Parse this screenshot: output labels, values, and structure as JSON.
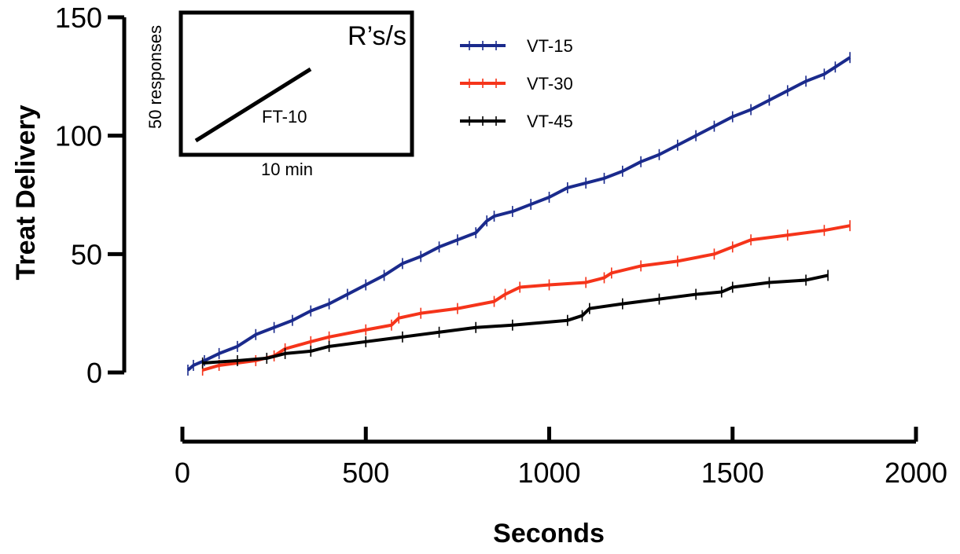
{
  "chart_data": {
    "type": "line",
    "xlabel": "Seconds",
    "ylabel": "Treat Delivery",
    "xlim": [
      0,
      2000
    ],
    "ylim": [
      0,
      150
    ],
    "x_ticks": [
      "0",
      "500",
      "1000",
      "1500",
      "2000"
    ],
    "y_ticks": [
      "0",
      "50",
      "100",
      "150"
    ],
    "grid": false,
    "legend_position": "top-right",
    "series": [
      {
        "name": "VT-15",
        "color": "#1a2a8c",
        "points": [
          [
            15,
            1
          ],
          [
            30,
            3
          ],
          [
            60,
            5
          ],
          [
            100,
            8
          ],
          [
            150,
            11
          ],
          [
            200,
            16
          ],
          [
            250,
            19
          ],
          [
            300,
            22
          ],
          [
            350,
            26
          ],
          [
            400,
            29
          ],
          [
            450,
            33
          ],
          [
            500,
            37
          ],
          [
            550,
            41
          ],
          [
            600,
            46
          ],
          [
            650,
            49
          ],
          [
            700,
            53
          ],
          [
            750,
            56
          ],
          [
            800,
            59
          ],
          [
            830,
            64
          ],
          [
            850,
            66
          ],
          [
            900,
            68
          ],
          [
            950,
            71
          ],
          [
            1000,
            74
          ],
          [
            1050,
            78
          ],
          [
            1100,
            80
          ],
          [
            1150,
            82
          ],
          [
            1200,
            85
          ],
          [
            1250,
            89
          ],
          [
            1300,
            92
          ],
          [
            1350,
            96
          ],
          [
            1400,
            100
          ],
          [
            1450,
            104
          ],
          [
            1500,
            108
          ],
          [
            1550,
            111
          ],
          [
            1600,
            115
          ],
          [
            1650,
            119
          ],
          [
            1700,
            123
          ],
          [
            1750,
            126
          ],
          [
            1780,
            129
          ],
          [
            1820,
            133
          ]
        ]
      },
      {
        "name": "VT-30",
        "color": "#f5341a",
        "points": [
          [
            55,
            1
          ],
          [
            100,
            3
          ],
          [
            200,
            5
          ],
          [
            250,
            7
          ],
          [
            280,
            10
          ],
          [
            350,
            13
          ],
          [
            400,
            15
          ],
          [
            500,
            18
          ],
          [
            570,
            20
          ],
          [
            590,
            23
          ],
          [
            650,
            25
          ],
          [
            750,
            27
          ],
          [
            850,
            30
          ],
          [
            880,
            33
          ],
          [
            920,
            36
          ],
          [
            1000,
            37
          ],
          [
            1100,
            38
          ],
          [
            1150,
            40
          ],
          [
            1170,
            42
          ],
          [
            1250,
            45
          ],
          [
            1350,
            47
          ],
          [
            1450,
            50
          ],
          [
            1500,
            53
          ],
          [
            1550,
            56
          ],
          [
            1650,
            58
          ],
          [
            1750,
            60
          ],
          [
            1820,
            62
          ]
        ]
      },
      {
        "name": "VT-45",
        "color": "#000000",
        "points": [
          [
            55,
            4
          ],
          [
            150,
            5
          ],
          [
            230,
            6
          ],
          [
            280,
            8
          ],
          [
            350,
            9
          ],
          [
            400,
            11
          ],
          [
            500,
            13
          ],
          [
            600,
            15
          ],
          [
            700,
            17
          ],
          [
            800,
            19
          ],
          [
            900,
            20
          ],
          [
            1050,
            22
          ],
          [
            1090,
            24
          ],
          [
            1110,
            27
          ],
          [
            1200,
            29
          ],
          [
            1300,
            31
          ],
          [
            1400,
            33
          ],
          [
            1470,
            34
          ],
          [
            1500,
            36
          ],
          [
            1600,
            38
          ],
          [
            1700,
            39
          ],
          [
            1760,
            41
          ]
        ]
      }
    ],
    "inset": {
      "ylabel": "50 responses",
      "xlabel": "10 min",
      "corner_label": "R’s/s",
      "line_label": "FT-10"
    }
  }
}
